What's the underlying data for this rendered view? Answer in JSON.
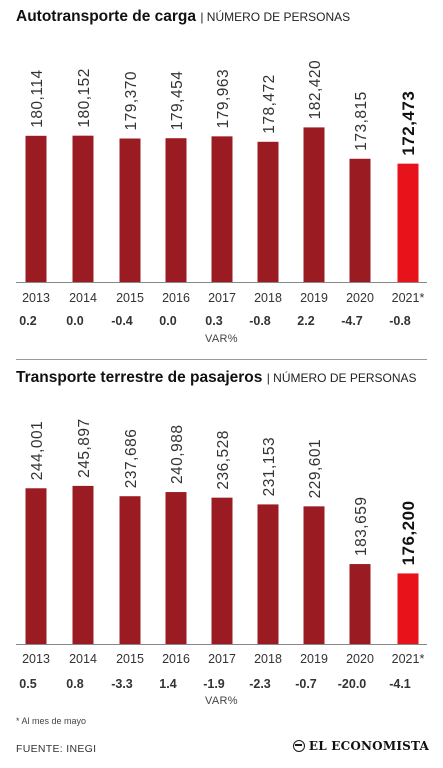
{
  "chart_data": [
    {
      "type": "bar",
      "title": "Autotransporte de carga",
      "subtitle": "| NÚMERO DE PERSONAS",
      "categories": [
        "2013",
        "2014",
        "2015",
        "2016",
        "2017",
        "2018",
        "2019",
        "2020",
        "2021*"
      ],
      "values": [
        180114,
        180152,
        179370,
        179454,
        179963,
        178472,
        182420,
        173815,
        172473
      ],
      "value_labels": [
        "180,114",
        "180,152",
        "179,370",
        "179,454",
        "179,963",
        "178,472",
        "182,420",
        "173,815",
        "172,473"
      ],
      "variation": [
        "0.2",
        "0.0",
        "-0.4",
        "0.0",
        "0.3",
        "-0.8",
        "2.2",
        "-4.7",
        "-0.8"
      ],
      "variation_label": "VAR%",
      "ylim": [
        140000,
        185000
      ],
      "highlight_index": 8
    },
    {
      "type": "bar",
      "title": "Transporte terrestre de pasajeros",
      "subtitle": "| NÚMERO DE PERSONAS",
      "categories": [
        "2013",
        "2014",
        "2015",
        "2016",
        "2017",
        "2018",
        "2019",
        "2020",
        "2021*"
      ],
      "values": [
        244001,
        245897,
        237686,
        240988,
        236528,
        231153,
        229601,
        183659,
        176200
      ],
      "value_labels": [
        "244,001",
        "245,897",
        "237,686",
        "240,988",
        "236,528",
        "231,153",
        "229,601",
        "183,659",
        "176,200"
      ],
      "variation": [
        "0.5",
        "0.8",
        "-3.3",
        "1.4",
        "-1.9",
        "-2.3",
        "-0.7",
        "-20.0",
        "-4.1"
      ],
      "variation_label": "VAR%",
      "ylim": [
        120000,
        249000
      ],
      "highlight_index": 8
    }
  ],
  "colors": {
    "bar": "#9b1b23",
    "highlight": "#e8121b",
    "axis": "#888888",
    "text": "#333333"
  },
  "footnote": "* Al mes de mayo",
  "source": "FUENTE: INEGI",
  "brand": "EL ECONOMISTA"
}
